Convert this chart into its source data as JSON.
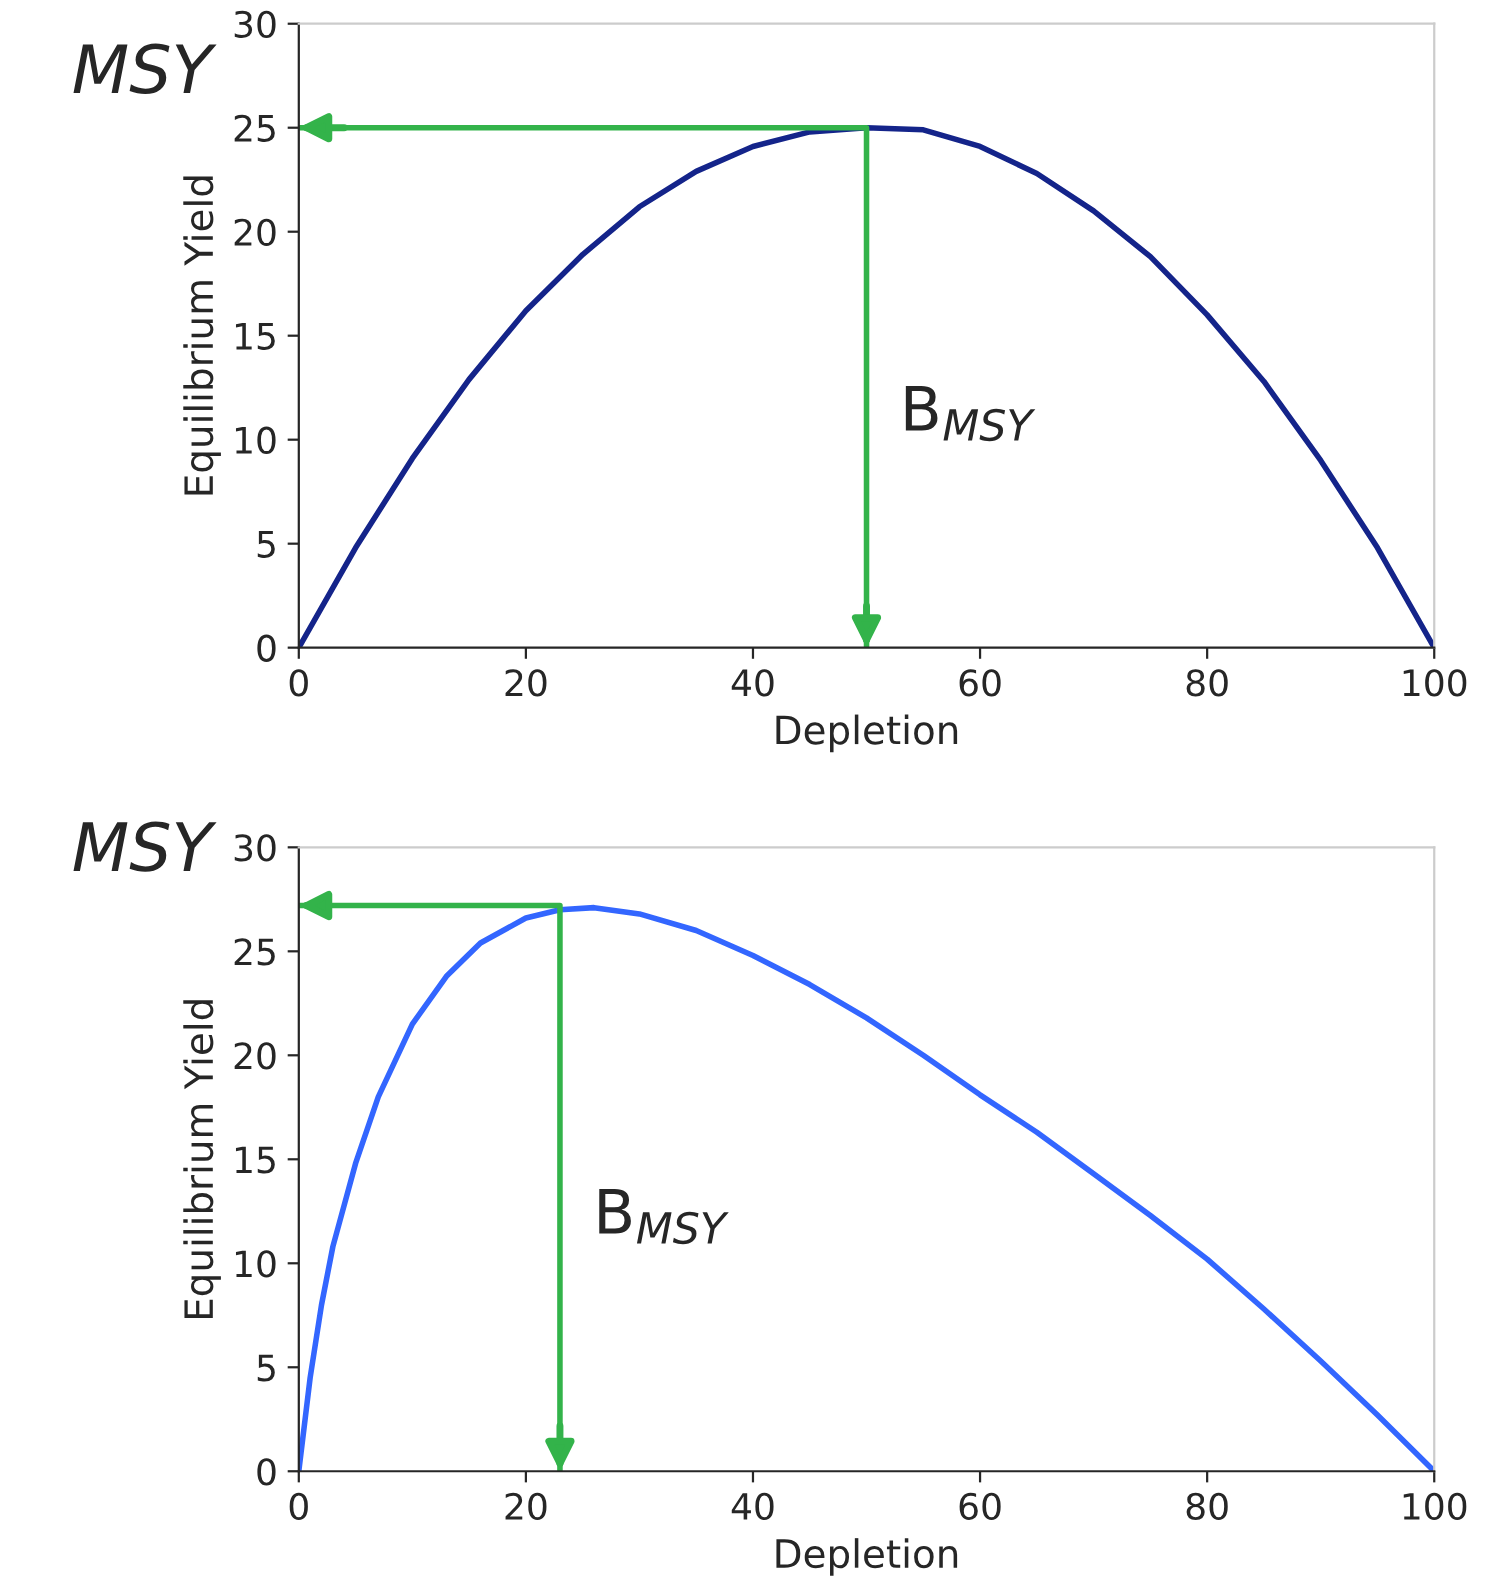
{
  "chart_data": [
    {
      "type": "line",
      "xlabel": "Depletion",
      "ylabel": "Equilibrium Yield",
      "xlim": [
        0,
        100
      ],
      "ylim": [
        0,
        30
      ],
      "xticks": [
        0,
        20,
        40,
        60,
        80,
        100
      ],
      "yticks": [
        0,
        5,
        10,
        15,
        20,
        25,
        30
      ],
      "grid": false,
      "series": [
        {
          "color": "#14248a",
          "x": [
            0,
            5,
            10,
            15,
            20,
            25,
            30,
            35,
            40,
            45,
            50,
            55,
            60,
            65,
            70,
            75,
            80,
            85,
            90,
            95,
            100
          ],
          "values": [
            0,
            4.8,
            9.1,
            12.9,
            16.2,
            18.9,
            21.2,
            22.9,
            24.1,
            24.8,
            25,
            24.9,
            24.1,
            22.8,
            21,
            18.8,
            16,
            12.8,
            9,
            4.8,
            0
          ]
        },
        {
          "color": "#33b34a",
          "x": [
            0,
            50,
            50
          ],
          "values": [
            25,
            25,
            0
          ]
        }
      ],
      "annotations": [
        "MSY",
        "B$_{MSY}$"
      ]
    },
    {
      "type": "line",
      "xlabel": "Depletion",
      "ylabel": "Equilibrium Yield",
      "xlim": [
        0,
        100
      ],
      "ylim": [
        0,
        30
      ],
      "xticks": [
        0,
        20,
        40,
        60,
        80,
        100
      ],
      "yticks": [
        0,
        5,
        10,
        15,
        20,
        25,
        30
      ],
      "grid": false,
      "series": [
        {
          "color": "#3366ff",
          "x": [
            0,
            1,
            2,
            3,
            5,
            7,
            10,
            13,
            16,
            20,
            23,
            26,
            30,
            35,
            40,
            45,
            50,
            55,
            60,
            65,
            70,
            75,
            80,
            85,
            90,
            95,
            100
          ],
          "values": [
            0,
            4.5,
            8,
            10.8,
            14.8,
            18,
            21.5,
            23.8,
            25.4,
            26.6,
            27,
            27.1,
            26.8,
            26,
            24.8,
            23.4,
            21.8,
            20,
            18.1,
            16.3,
            14.3,
            12.3,
            10.2,
            7.8,
            5.3,
            2.7,
            0
          ]
        },
        {
          "color": "#33b34a",
          "x": [
            0,
            23,
            23
          ],
          "values": [
            27.2,
            27.2,
            0
          ]
        }
      ],
      "annotations": [
        "MSY",
        "B$_{MSY}$"
      ]
    }
  ]
}
